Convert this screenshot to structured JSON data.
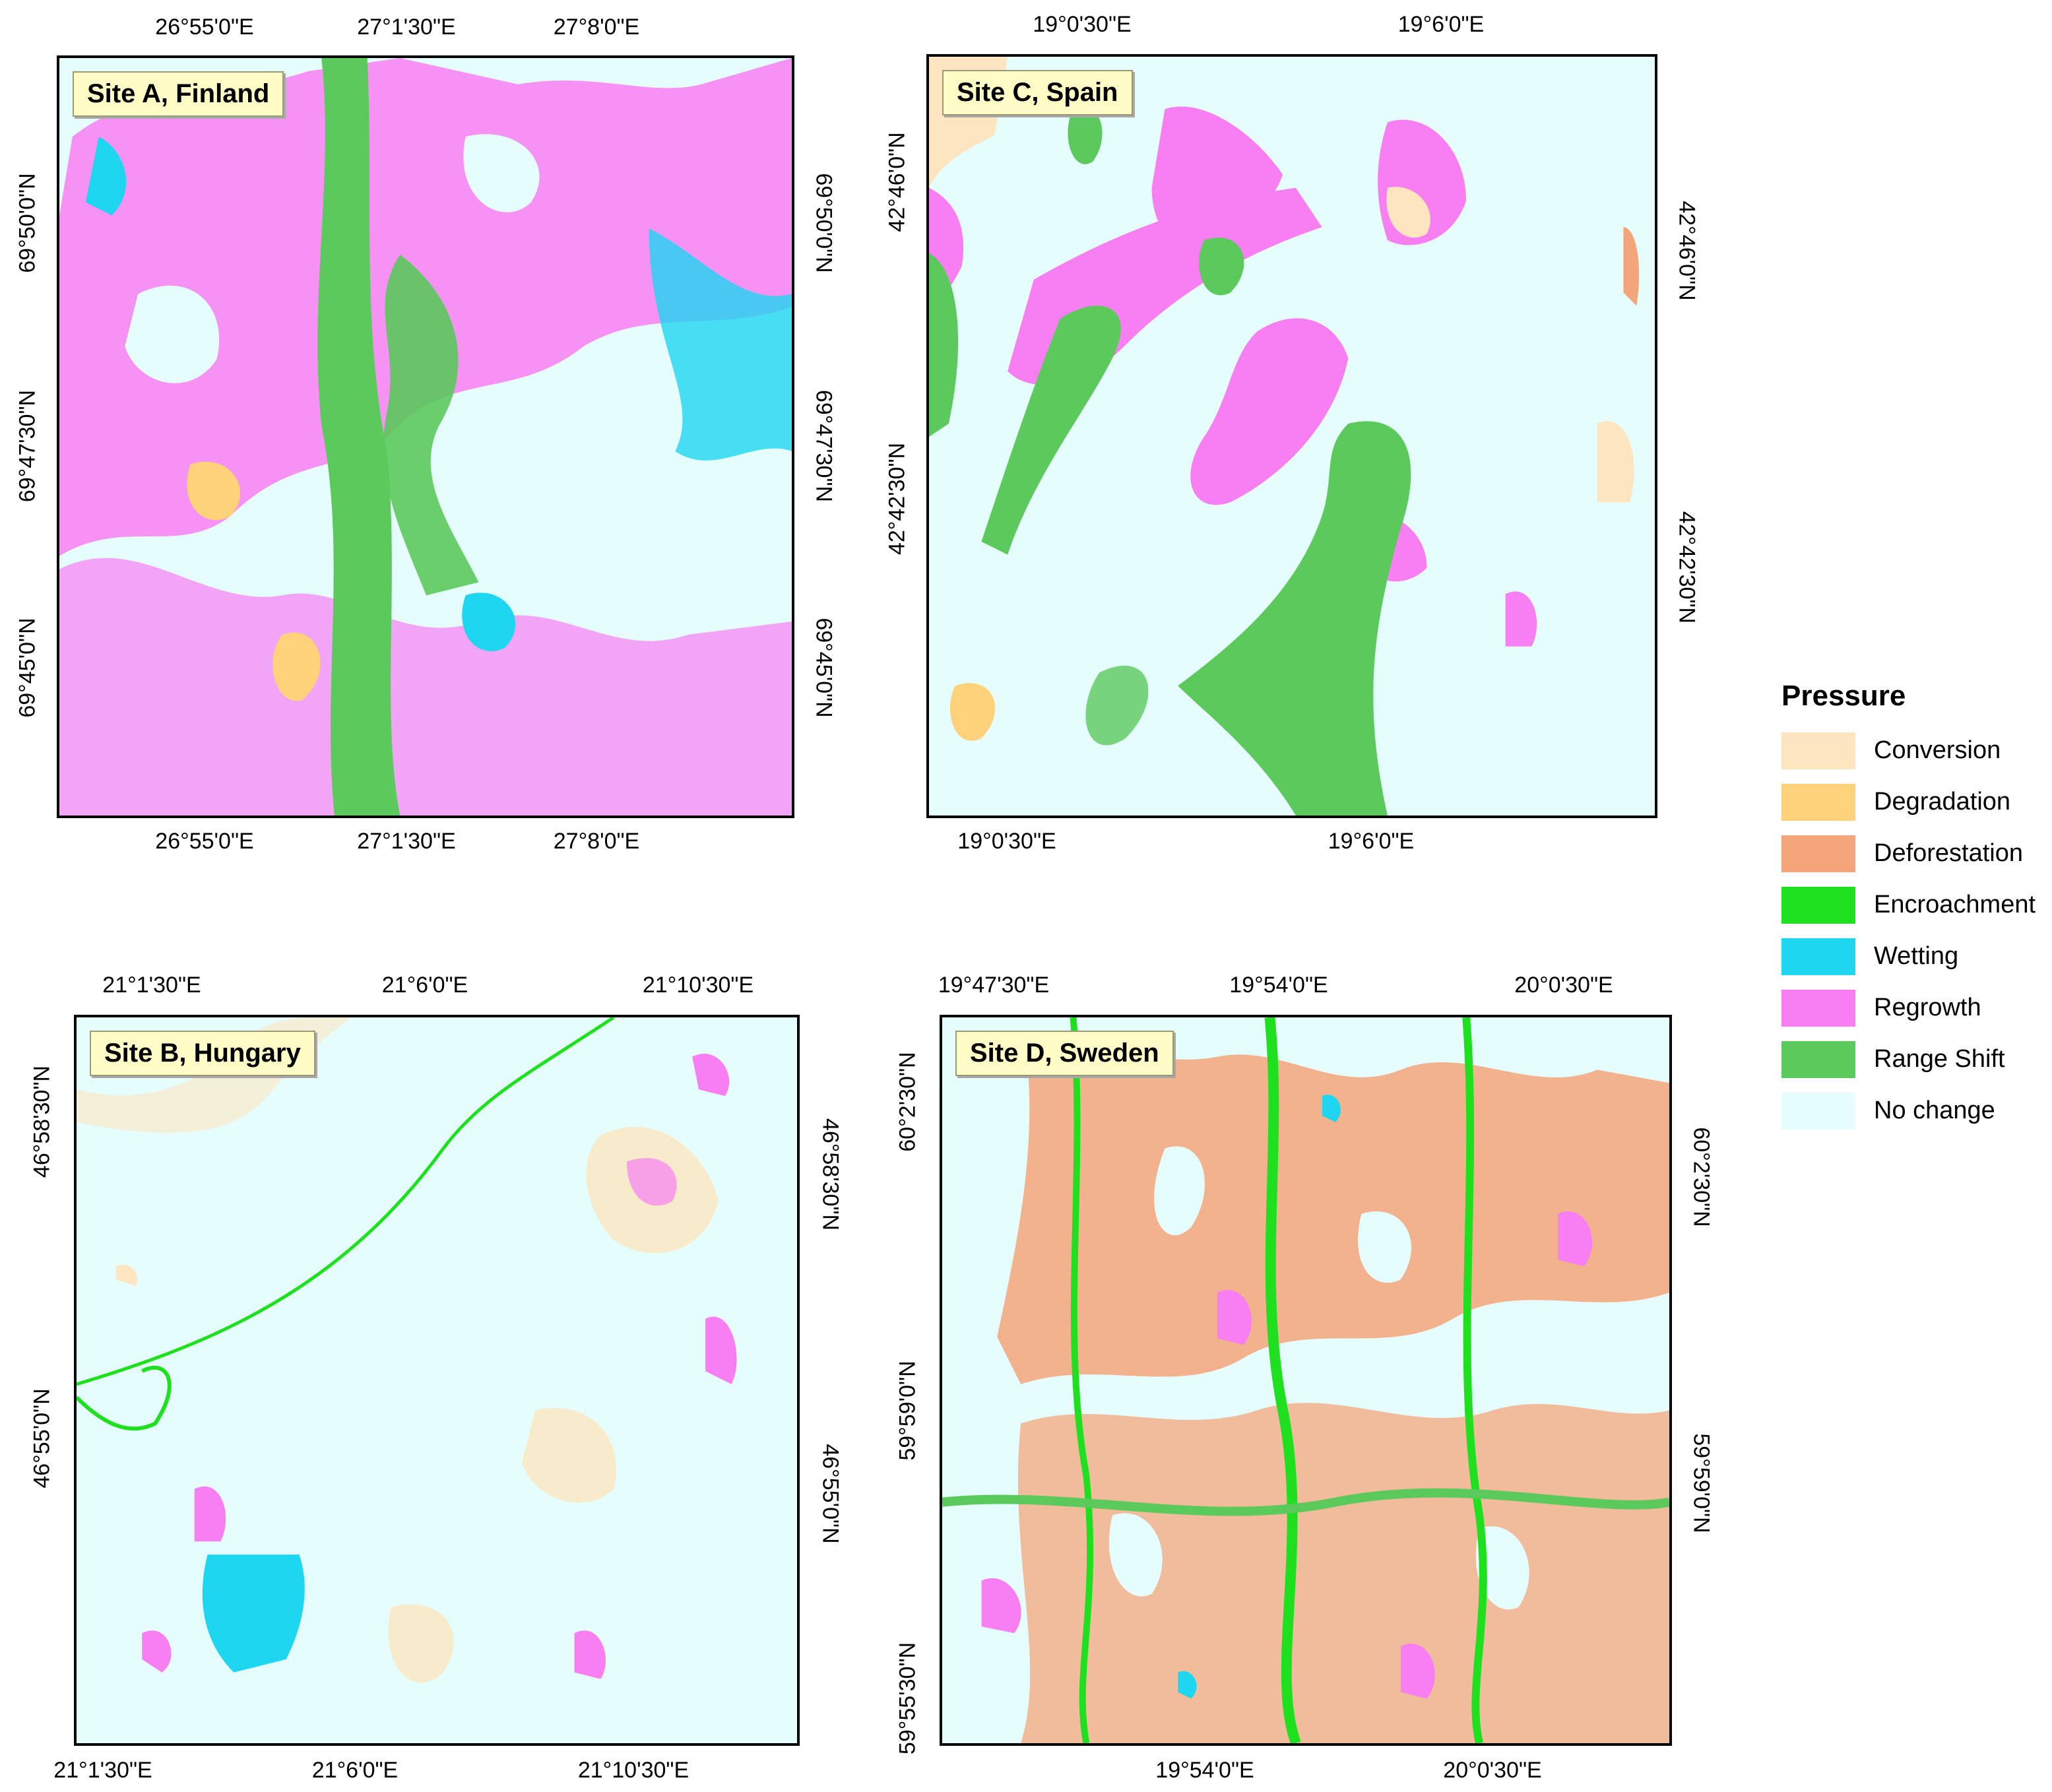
{
  "panels": {
    "a": {
      "title": "Site A, Finland",
      "top_ticks": [
        "26°55'0\"E",
        "27°1'30\"E",
        "27°8'0\"E"
      ],
      "bottom_ticks": [
        "26°55'0\"E",
        "27°1'30\"E",
        "27°8'0\"E"
      ],
      "left_ticks": [
        "69°50'0\"N",
        "69°47'30\"N",
        "69°45'0\"N"
      ],
      "right_ticks": [
        "69°50'0\"N",
        "69°47'30\"N",
        "69°45'0\"N"
      ],
      "dominant_classes": [
        "Regrowth",
        "Range Shift",
        "Wetting",
        "Degradation",
        "No change"
      ]
    },
    "c": {
      "title": "Site C, Spain",
      "top_ticks": [
        "19°0'30\"E",
        "19°6'0\"E"
      ],
      "bottom_ticks": [
        "19°0'30\"E",
        "19°6'0\"E"
      ],
      "left_ticks": [
        "42°46'0\"N",
        "42°42'30\"N"
      ],
      "right_ticks": [
        "42°46'0\"N",
        "42°42'30\"N"
      ],
      "dominant_classes": [
        "Range Shift",
        "Regrowth",
        "Conversion",
        "No change"
      ]
    },
    "b": {
      "title": "Site B, Hungary",
      "top_ticks": [
        "21°1'30\"E",
        "21°6'0\"E",
        "21°10'30\"E"
      ],
      "bottom_ticks": [
        "21°1'30\"E",
        "21°6'0\"E",
        "21°10'30\"E"
      ],
      "left_ticks": [
        "46°58'30\"N",
        "46°55'0\"N"
      ],
      "right_ticks": [
        "46°58'30\"N",
        "46°55'0\"N"
      ],
      "dominant_classes": [
        "No change",
        "Conversion",
        "Regrowth",
        "Wetting",
        "Encroachment"
      ]
    },
    "d": {
      "title": "Site D, Sweden",
      "top_ticks": [
        "19°47'30\"E",
        "19°54'0\"E",
        "20°0'30\"E"
      ],
      "bottom_ticks": [
        "19°54'0\"E",
        "20°0'30\"E"
      ],
      "left_ticks": [
        "60°2'30\"N",
        "59°59'0\"N",
        "59°55'30\"N"
      ],
      "right_ticks": [
        "60°2'30\"N",
        "59°59'0\"N"
      ],
      "dominant_classes": [
        "Deforestation",
        "Encroachment",
        "Regrowth",
        "No change"
      ]
    }
  },
  "legend": {
    "title": "Pressure",
    "items": [
      {
        "label": "Conversion",
        "color": "#fde6bf"
      },
      {
        "label": "Degradation",
        "color": "#fdd27a"
      },
      {
        "label": "Deforestation",
        "color": "#f4a57a"
      },
      {
        "label": "Encroachment",
        "color": "#1fe01f"
      },
      {
        "label": "Wetting",
        "color": "#1ed6f0"
      },
      {
        "label": "Regrowth",
        "color": "#f77ff2"
      },
      {
        "label": "Range Shift",
        "color": "#5bc95b"
      },
      {
        "label": "No change",
        "color": "#e6fdfd"
      }
    ]
  }
}
